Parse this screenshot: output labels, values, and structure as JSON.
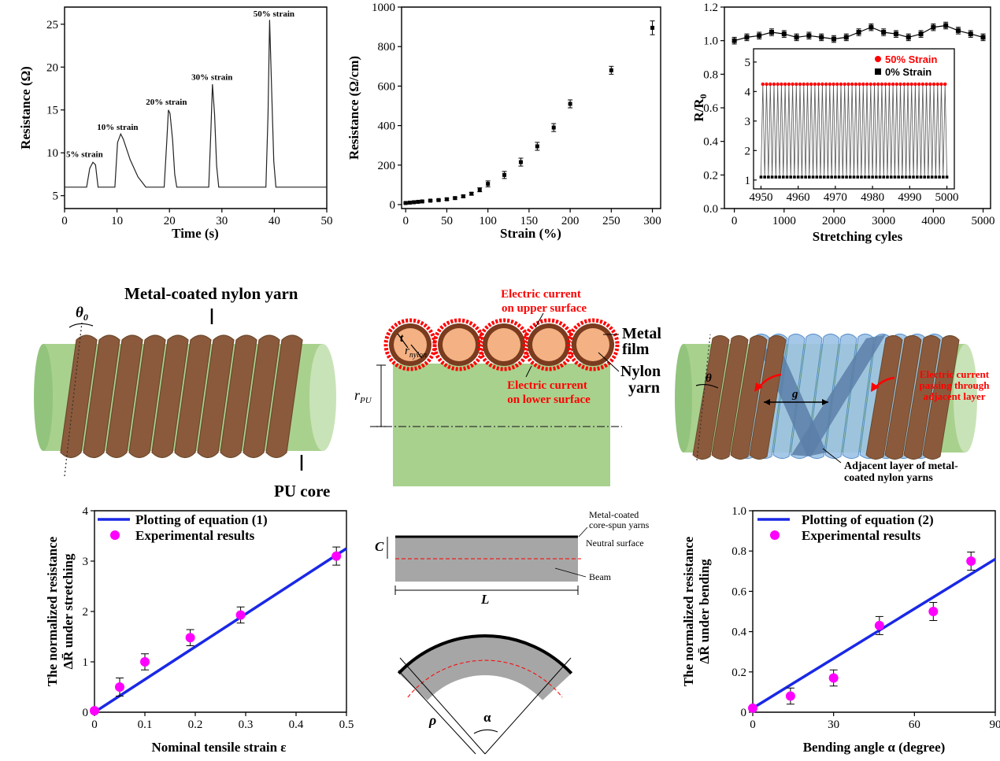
{
  "chart_data": [
    {
      "type": "line",
      "xlabel": "Time (s)",
      "ylabel": "Resistance (Ω)",
      "xlim": [
        0,
        50
      ],
      "ylim": [
        3.5,
        27
      ],
      "xticks": [
        0,
        10,
        20,
        30,
        40,
        50
      ],
      "yticks": [
        5,
        10,
        15,
        20,
        25
      ],
      "x": [
        0,
        4.2,
        4.8,
        5.4,
        5.9,
        6.2,
        6.4,
        9.6,
        10.1,
        10.7,
        11.2,
        12.5,
        14,
        15.5,
        19,
        19.5,
        19.8,
        20.1,
        20.6,
        21,
        21.4,
        27.5,
        27.9,
        28.2,
        28.6,
        29,
        29.4,
        38.4,
        38.8,
        39.1,
        39.5,
        39.9,
        40.3,
        50
      ],
      "values": [
        6,
        6,
        8.2,
        8.9,
        8.6,
        7,
        6,
        6,
        11.2,
        12.2,
        11.6,
        9.2,
        7.2,
        6,
        6,
        11.5,
        15,
        14.6,
        11.5,
        7.5,
        6,
        6,
        12.5,
        18,
        14.5,
        8.5,
        6,
        6,
        14.5,
        25.5,
        17,
        9,
        6,
        6
      ],
      "annotations": [
        {
          "text": "5% strain",
          "x": 0.3,
          "y": 9.5
        },
        {
          "text": "10% strain",
          "x": 6.2,
          "y": 12.7
        },
        {
          "text": "20% strain",
          "x": 15.5,
          "y": 15.6
        },
        {
          "text": "30% strain",
          "x": 24.2,
          "y": 18.5
        },
        {
          "text": "50% strain",
          "x": 36,
          "y": 25.9
        }
      ]
    },
    {
      "type": "scatter",
      "xlabel": "Strain (%)",
      "ylabel": "Resistance (Ω/cm)",
      "xlim": [
        -5,
        310
      ],
      "ylim": [
        -20,
        1000
      ],
      "xticks": [
        0,
        50,
        100,
        150,
        200,
        250,
        300
      ],
      "yticks": [
        0,
        200,
        400,
        600,
        800,
        1000
      ],
      "x": [
        0,
        5,
        10,
        15,
        20,
        30,
        40,
        50,
        60,
        70,
        80,
        90,
        100,
        120,
        140,
        160,
        180,
        200,
        250,
        300
      ],
      "values": [
        8,
        10,
        12,
        14,
        16,
        20,
        23,
        27,
        33,
        42,
        55,
        75,
        105,
        150,
        215,
        295,
        390,
        510,
        680,
        895
      ],
      "errors": [
        4,
        4,
        4,
        4,
        4,
        4,
        4,
        5,
        5,
        6,
        7,
        10,
        15,
        18,
        20,
        20,
        20,
        20,
        20,
        35
      ]
    },
    {
      "type": "line",
      "xlabel": "Stretching cyles",
      "ylabel": "R/R0",
      "ylabel_main": "R/R",
      "ylabel_sub": "0",
      "xlim": [
        -200,
        5150
      ],
      "ylim": [
        0,
        1.2
      ],
      "xticks": [
        0,
        1000,
        2000,
        3000,
        4000,
        5000
      ],
      "yticks": [
        "0.0",
        "0.2",
        "0.4",
        "0.6",
        "0.8",
        "1.0",
        "1.2"
      ],
      "x": [
        0,
        250,
        500,
        750,
        1000,
        1250,
        1500,
        1750,
        2000,
        2250,
        2500,
        2750,
        3000,
        3250,
        3500,
        3750,
        4000,
        4250,
        4500,
        4750,
        5000
      ],
      "values": [
        1.0,
        1.02,
        1.03,
        1.05,
        1.04,
        1.02,
        1.03,
        1.02,
        1.01,
        1.02,
        1.05,
        1.08,
        1.05,
        1.04,
        1.02,
        1.04,
        1.08,
        1.09,
        1.06,
        1.04,
        1.02
      ],
      "errors": 0.02,
      "inset": {
        "xlim": [
          4948,
          5002
        ],
        "ylim": [
          0.7,
          5.45
        ],
        "xticks": [
          4950,
          4960,
          4970,
          4980,
          4990,
          5000
        ],
        "yticks": [
          1,
          2,
          3,
          4,
          5
        ],
        "cycles_from": 4950,
        "cycles_to": 5000,
        "high": 4.25,
        "low": 1.1,
        "legend": [
          {
            "name": "50% Strain",
            "color": "#ff0000",
            "marker": "circle"
          },
          {
            "name": "0% Strain",
            "color": "#000000",
            "marker": "square"
          }
        ]
      }
    },
    {
      "type": "scatter",
      "xlabel": "Nominal tensile strain ε",
      "ylabel_lines": [
        "The normalized resistance",
        "ΔR̄ under stretching"
      ],
      "xlim": [
        0,
        0.5
      ],
      "ylim": [
        0,
        4
      ],
      "xticks": [
        "0",
        "0.1",
        "0.2",
        "0.3",
        "0.4",
        "0.5"
      ],
      "yticks": [
        "0",
        "1",
        "2",
        "3",
        "4"
      ],
      "legend": [
        "Plotting of equation (1)",
        "Experimental results"
      ],
      "fit_line": {
        "x": [
          0,
          0.5
        ],
        "y": [
          0,
          3.25
        ],
        "color": "#1a28e6"
      },
      "x": [
        0,
        0.05,
        0.1,
        0.19,
        0.29,
        0.48
      ],
      "values": [
        0.03,
        0.5,
        1.0,
        1.48,
        1.93,
        3.1
      ],
      "errors": [
        0.05,
        0.18,
        0.16,
        0.16,
        0.16,
        0.18
      ],
      "point_color": "#ff00ff"
    },
    {
      "type": "scatter",
      "xlabel": "Bending angle α (degree)",
      "ylabel_lines": [
        "The normalized resistance",
        "ΔR̄ under bending"
      ],
      "xlim": [
        0,
        90
      ],
      "ylim": [
        0,
        1
      ],
      "xticks": [
        "0",
        "30",
        "60",
        "90"
      ],
      "yticks": [
        "0",
        "0.2",
        "0.4",
        "0.6",
        "0.8",
        "1.0"
      ],
      "legend": [
        "Plotting of equation (2)",
        "Experimental results"
      ],
      "fit_line": {
        "x": [
          0,
          90
        ],
        "y": [
          0.02,
          0.76
        ],
        "color": "#1a28e6"
      },
      "x": [
        0,
        14,
        30,
        47,
        67,
        81
      ],
      "values": [
        0.02,
        0.08,
        0.17,
        0.43,
        0.5,
        0.75
      ],
      "errors": [
        0.01,
        0.04,
        0.04,
        0.045,
        0.045,
        0.045
      ],
      "point_color": "#ff00ff"
    }
  ],
  "diagrams": {
    "yarn": {
      "title": "Metal-coated nylon yarn",
      "angle": "θ",
      "angle_sub": "0",
      "core": "PU core"
    },
    "cross_section": {
      "t": "t",
      "r_nylon": "r",
      "r_nylon_sub": "nylon",
      "r_pu": "r",
      "r_pu_sub": "PU",
      "upper": [
        "Electric current",
        "on upper surface"
      ],
      "lower": [
        "Electric current",
        "on lower surface"
      ],
      "metal": [
        "Metal",
        "film"
      ],
      "nylon": [
        "Nylon",
        "yarn"
      ]
    },
    "layer": {
      "angle": "θ",
      "gap": "g",
      "current": [
        "Electric current",
        "passing through",
        "adjacent layer"
      ],
      "adjacent": [
        "Adjacent layer of metal-",
        "coated nylon yarns"
      ]
    },
    "beam": {
      "c": "C",
      "l": "L",
      "yarns": [
        "Metal-coated",
        "core-spun yarns"
      ],
      "neutral": "Neutral surface",
      "beam": "Beam",
      "rho": "ρ",
      "alpha": "α"
    },
    "colors": {
      "green": "#a9d18e",
      "brown": "#8b5a3c",
      "blue": "#9dc3e6",
      "red": "#ff0000",
      "salmon": "#f4b183"
    }
  }
}
